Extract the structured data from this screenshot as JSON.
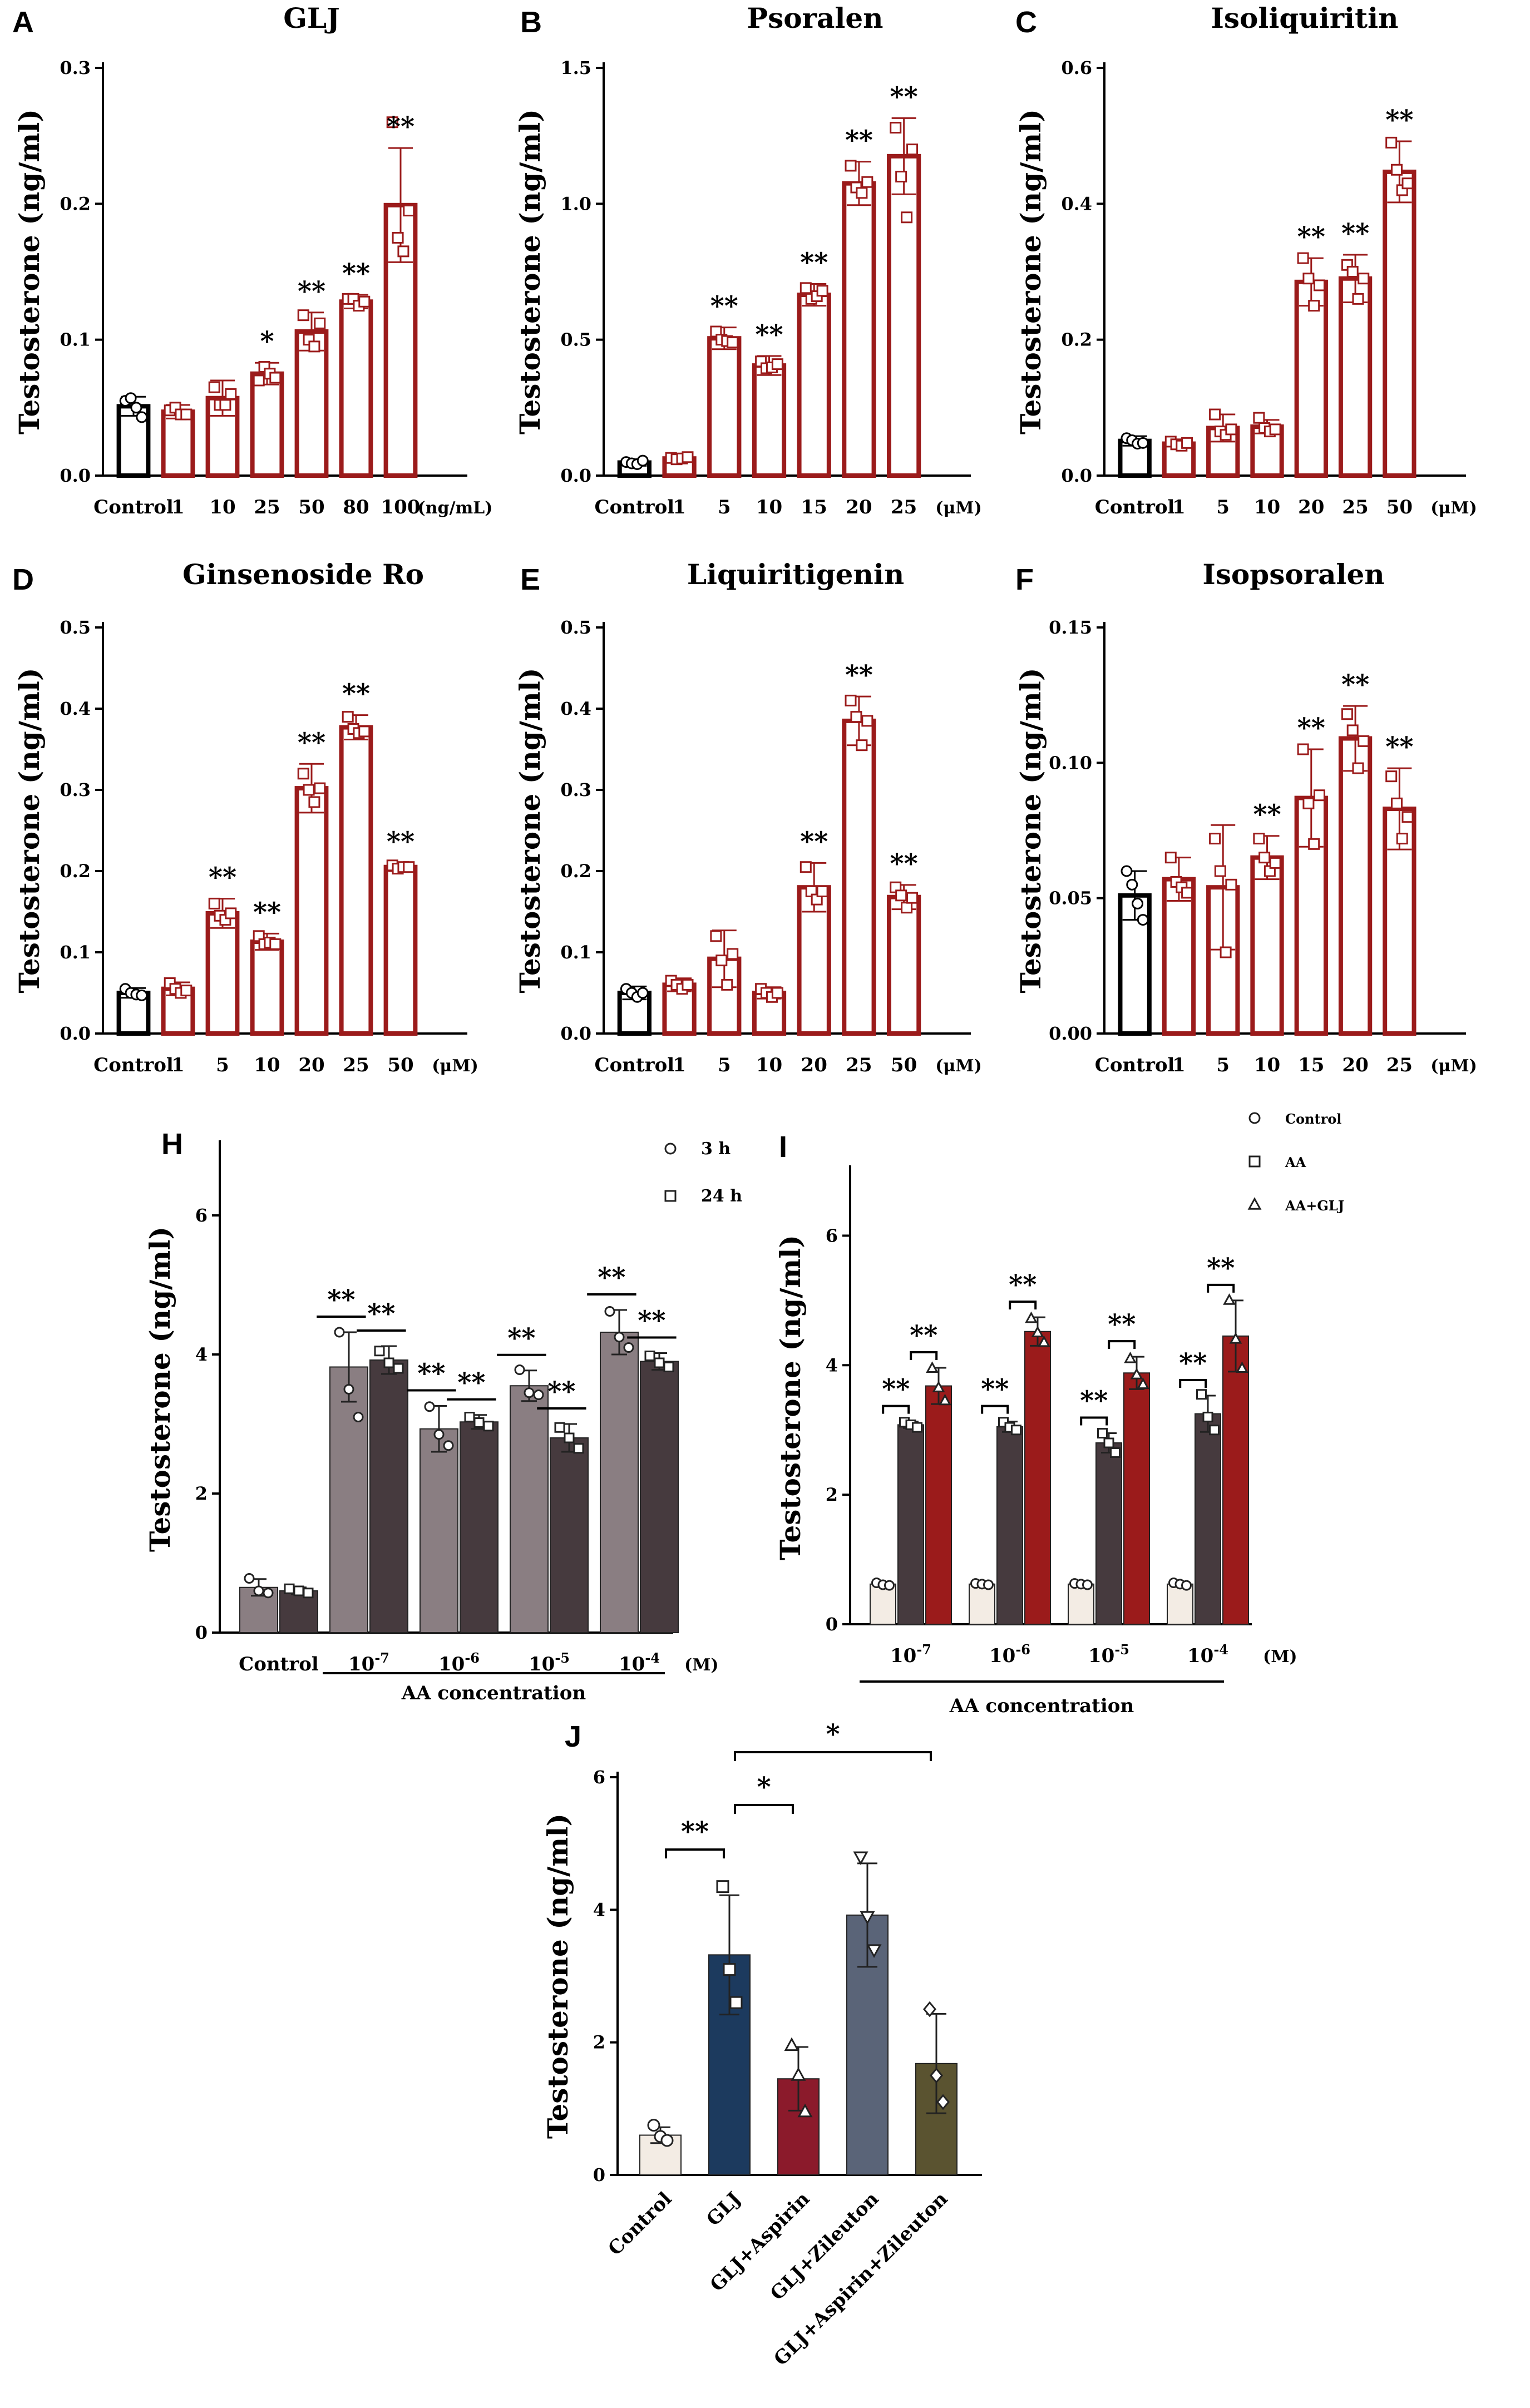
{
  "colors": {
    "red": "#9B1B1B",
    "black": "#000000",
    "light_grey": "#8A7E82",
    "dark_grey": "#463A3E",
    "cream": "#F3ECE4",
    "navy": "#1C3A5E",
    "slate": "#5A6478",
    "olive": "#5A5330"
  },
  "chart_data": [
    {
      "id": "A",
      "letter": "A",
      "title": "GLJ",
      "type": "bar",
      "style": "outline",
      "ylabel": "Testosterone (ng/ml)",
      "categories": [
        "Control",
        "1",
        "10",
        "25",
        "50",
        "80",
        "100"
      ],
      "unit": "(ng/mL)",
      "values": [
        0.051,
        0.047,
        0.057,
        0.075,
        0.106,
        0.128,
        0.199
      ],
      "errors": [
        0.007,
        0.005,
        0.013,
        0.008,
        0.014,
        0.005,
        0.042
      ],
      "points": [
        [
          0.055,
          0.057,
          0.05,
          0.043
        ],
        [
          0.048,
          0.05,
          0.045,
          0.045
        ],
        [
          0.065,
          0.052,
          0.052,
          0.06
        ],
        [
          0.07,
          0.08,
          0.075,
          0.072
        ],
        [
          0.118,
          0.1,
          0.095,
          0.112
        ],
        [
          0.13,
          0.13,
          0.125,
          0.128
        ],
        [
          0.26,
          0.175,
          0.165,
          0.195
        ]
      ],
      "stars": [
        "",
        "",
        "",
        "*",
        "**",
        "**",
        "**"
      ],
      "ylim": [
        0,
        0.3
      ],
      "yticks": [
        "0.0",
        "0.1",
        "0.2",
        "0.3"
      ],
      "ytick_values": [
        0,
        0.1,
        0.2,
        0.3
      ]
    },
    {
      "id": "B",
      "letter": "B",
      "title": "Psoralen",
      "type": "bar",
      "style": "outline",
      "ylabel": "Testosterone (ng/ml)",
      "categories": [
        "Control",
        "1",
        "5",
        "10",
        "15",
        "20",
        "25"
      ],
      "unit": "(μM)",
      "values": [
        0.048,
        0.063,
        0.505,
        0.405,
        0.665,
        1.075,
        1.175
      ],
      "errors": [
        0.012,
        0.01,
        0.04,
        0.035,
        0.04,
        0.08,
        0.14
      ],
      "points": [
        [
          0.05,
          0.045,
          0.042,
          0.055
        ],
        [
          0.065,
          0.06,
          0.063,
          0.068
        ],
        [
          0.53,
          0.5,
          0.495,
          0.49
        ],
        [
          0.42,
          0.395,
          0.398,
          0.41
        ],
        [
          0.69,
          0.65,
          0.66,
          0.68
        ],
        [
          1.14,
          1.06,
          1.04,
          1.08
        ],
        [
          1.28,
          1.1,
          0.95,
          1.2
        ]
      ],
      "stars": [
        "",
        "",
        "**",
        "**",
        "**",
        "**",
        "**"
      ],
      "ylim": [
        0,
        1.5
      ],
      "yticks": [
        "0.0",
        "0.5",
        "1.0",
        "1.5"
      ],
      "ytick_values": [
        0,
        0.5,
        1.0,
        1.5
      ]
    },
    {
      "id": "C",
      "letter": "C",
      "title": "Isoliquiritin",
      "type": "bar",
      "style": "outline",
      "ylabel": "Testosterone (ng/ml)",
      "categories": [
        "Control",
        "1",
        "5",
        "10",
        "20",
        "25",
        "50"
      ],
      "unit": "(μM)",
      "values": [
        0.051,
        0.047,
        0.07,
        0.072,
        0.285,
        0.29,
        0.447
      ],
      "errors": [
        0.007,
        0.004,
        0.02,
        0.01,
        0.035,
        0.035,
        0.045
      ],
      "points": [
        [
          0.055,
          0.052,
          0.047,
          0.048
        ],
        [
          0.05,
          0.046,
          0.044,
          0.048
        ],
        [
          0.09,
          0.065,
          0.06,
          0.068
        ],
        [
          0.085,
          0.07,
          0.065,
          0.068
        ],
        [
          0.32,
          0.29,
          0.25,
          0.28
        ],
        [
          0.31,
          0.3,
          0.26,
          0.29
        ],
        [
          0.49,
          0.45,
          0.42,
          0.43
        ]
      ],
      "stars": [
        "",
        "",
        "",
        "",
        "**",
        "**",
        "**"
      ],
      "ylim": [
        0,
        0.6
      ],
      "yticks": [
        "0.0",
        "0.2",
        "0.4",
        "0.6"
      ],
      "ytick_values": [
        0,
        0.2,
        0.4,
        0.6
      ]
    },
    {
      "id": "D",
      "letter": "D",
      "title": "Ginsenoside Ro",
      "type": "bar",
      "style": "outline",
      "ylabel": "Testosterone (ng/ml)",
      "categories": [
        "Control",
        "1",
        "5",
        "10",
        "20",
        "25",
        "50"
      ],
      "unit": "(μM)",
      "values": [
        0.05,
        0.055,
        0.148,
        0.113,
        0.302,
        0.377,
        0.205
      ],
      "errors": [
        0.006,
        0.008,
        0.018,
        0.01,
        0.03,
        0.015,
        0.005
      ],
      "points": [
        [
          0.055,
          0.05,
          0.048,
          0.047
        ],
        [
          0.062,
          0.055,
          0.05,
          0.053
        ],
        [
          0.16,
          0.145,
          0.14,
          0.148
        ],
        [
          0.12,
          0.11,
          0.112,
          0.11
        ],
        [
          0.32,
          0.3,
          0.285,
          0.302
        ],
        [
          0.39,
          0.375,
          0.37,
          0.372
        ],
        [
          0.207,
          0.203,
          0.205,
          0.205
        ]
      ],
      "stars": [
        "",
        "",
        "**",
        "**",
        "**",
        "**",
        "**"
      ],
      "ylim": [
        0,
        0.5
      ],
      "yticks": [
        "0.0",
        "0.1",
        "0.2",
        "0.3",
        "0.4",
        "0.5"
      ],
      "ytick_values": [
        0,
        0.1,
        0.2,
        0.3,
        0.4,
        0.5
      ]
    },
    {
      "id": "E",
      "letter": "E",
      "title": "Liquiritigenin",
      "type": "bar",
      "style": "outline",
      "ylabel": "Testosterone (ng/ml)",
      "categories": [
        "Control",
        "1",
        "5",
        "10",
        "20",
        "25",
        "50"
      ],
      "unit": "(μM)",
      "values": [
        0.05,
        0.06,
        0.092,
        0.05,
        0.18,
        0.385,
        0.168
      ],
      "errors": [
        0.008,
        0.008,
        0.035,
        0.007,
        0.03,
        0.03,
        0.015
      ],
      "points": [
        [
          0.055,
          0.05,
          0.045,
          0.05
        ],
        [
          0.065,
          0.06,
          0.055,
          0.06
        ],
        [
          0.12,
          0.09,
          0.06,
          0.098
        ],
        [
          0.055,
          0.05,
          0.045,
          0.05
        ],
        [
          0.205,
          0.175,
          0.165,
          0.175
        ],
        [
          0.41,
          0.39,
          0.355,
          0.385
        ],
        [
          0.18,
          0.17,
          0.155,
          0.167
        ]
      ],
      "stars": [
        "",
        "",
        "",
        "",
        "**",
        "**",
        "**"
      ],
      "ylim": [
        0,
        0.5
      ],
      "yticks": [
        "0.0",
        "0.1",
        "0.2",
        "0.3",
        "0.4",
        "0.5"
      ],
      "ytick_values": [
        0,
        0.1,
        0.2,
        0.3,
        0.4,
        0.5
      ]
    },
    {
      "id": "F",
      "letter": "F",
      "title": "Isopsoralen",
      "type": "bar",
      "style": "outline",
      "ylabel": "Testosterone (ng/ml)",
      "categories": [
        "Control",
        "1",
        "5",
        "10",
        "15",
        "20",
        "25"
      ],
      "unit": "(μM)",
      "values": [
        0.051,
        0.057,
        0.054,
        0.065,
        0.087,
        0.109,
        0.083
      ],
      "errors": [
        0.009,
        0.008,
        0.023,
        0.008,
        0.018,
        0.012,
        0.015
      ],
      "points": [
        [
          0.06,
          0.055,
          0.048,
          0.042
        ],
        [
          0.065,
          0.056,
          0.054,
          0.052
        ],
        [
          0.072,
          0.06,
          0.03,
          0.055
        ],
        [
          0.072,
          0.065,
          0.06,
          0.063
        ],
        [
          0.105,
          0.085,
          0.07,
          0.088
        ],
        [
          0.118,
          0.112,
          0.098,
          0.108
        ],
        [
          0.095,
          0.085,
          0.072,
          0.08
        ]
      ],
      "stars": [
        "",
        "",
        "",
        "**",
        "**",
        "**",
        "**"
      ],
      "ylim": [
        0,
        0.15
      ],
      "yticks": [
        "0.00",
        "0.05",
        "0.10",
        "0.15"
      ],
      "ytick_values": [
        0,
        0.05,
        0.1,
        0.15
      ]
    },
    {
      "id": "H",
      "letter": "H",
      "type": "bar",
      "style": "grouped",
      "ylabel": "Testosterone (ng/ml)",
      "xlabel": "AA concentration",
      "unit": "(M)",
      "groups": [
        {
          "base": "Control",
          "exp": ""
        },
        {
          "base": "10",
          "exp": "-7"
        },
        {
          "base": "10",
          "exp": "-6"
        },
        {
          "base": "10",
          "exp": "-5"
        },
        {
          "base": "10",
          "exp": "-4"
        }
      ],
      "series": [
        {
          "name": "3 h",
          "marker": "circle",
          "color": "#8A7E82",
          "values": [
            0.65,
            3.82,
            2.93,
            3.55,
            4.32
          ],
          "errors": [
            0.12,
            0.5,
            0.33,
            0.22,
            0.32
          ],
          "points": [
            [
              0.78,
              0.6,
              0.57
            ],
            [
              4.32,
              3.5,
              3.1
            ],
            [
              3.25,
              2.85,
              2.69
            ],
            [
              3.78,
              3.45,
              3.42
            ],
            [
              4.62,
              4.25,
              4.1
            ]
          ],
          "stars": [
            "",
            "**",
            "**",
            "**",
            "**"
          ]
        },
        {
          "name": "24 h",
          "marker": "square",
          "color": "#463A3E",
          "values": [
            0.6,
            3.92,
            3.03,
            2.8,
            3.9
          ],
          "errors": [
            0.05,
            0.2,
            0.1,
            0.2,
            0.12
          ],
          "points": [
            [
              0.63,
              0.6,
              0.57
            ],
            [
              4.05,
              3.88,
              3.8
            ],
            [
              3.1,
              3.02,
              2.97
            ],
            [
              2.95,
              2.8,
              2.65
            ],
            [
              3.98,
              3.88,
              3.82
            ]
          ],
          "stars": [
            "",
            "**",
            "**",
            "**",
            "**"
          ]
        }
      ],
      "ylim": [
        0,
        7
      ],
      "yticks": [
        "0",
        "2",
        "4",
        "6"
      ],
      "ytick_values": [
        0,
        2,
        4,
        6
      ]
    },
    {
      "id": "I",
      "letter": "I",
      "type": "bar",
      "style": "grouped",
      "ylabel": "Testosterone (ng/ml)",
      "xlabel": "AA concentration",
      "unit": "(M)",
      "groups": [
        {
          "base": "10",
          "exp": "-7"
        },
        {
          "base": "10",
          "exp": "-6"
        },
        {
          "base": "10",
          "exp": "-5"
        },
        {
          "base": "10",
          "exp": "-4"
        }
      ],
      "series": [
        {
          "name": "Control",
          "marker": "circle",
          "color": "#F3ECE4",
          "values": [
            0.62,
            0.62,
            0.62,
            0.62
          ],
          "errors": [
            0.03,
            0.02,
            0.02,
            0.02
          ],
          "points": [
            [
              0.64,
              0.61,
              0.6
            ],
            [
              0.63,
              0.62,
              0.61
            ],
            [
              0.63,
              0.62,
              0.61
            ],
            [
              0.64,
              0.62,
              0.6
            ]
          ],
          "stars": [
            "",
            "",
            "",
            ""
          ]
        },
        {
          "name": "AA",
          "marker": "square",
          "color": "#463A3E",
          "values": [
            3.08,
            3.05,
            2.8,
            3.25
          ],
          "errors": [
            0.05,
            0.08,
            0.15,
            0.28
          ],
          "points": [
            [
              3.12,
              3.08,
              3.04
            ],
            [
              3.12,
              3.04,
              3.0
            ],
            [
              2.95,
              2.8,
              2.65
            ],
            [
              3.55,
              3.2,
              3.0
            ]
          ],
          "stars": [
            "**",
            "**",
            "**",
            "**"
          ]
        },
        {
          "name": "AA+GLJ",
          "marker": "triangle",
          "color": "#9B1B1B",
          "values": [
            3.68,
            4.52,
            3.88,
            4.45
          ],
          "errors": [
            0.28,
            0.22,
            0.25,
            0.55
          ],
          "points": [
            [
              3.95,
              3.65,
              3.45
            ],
            [
              4.72,
              4.5,
              4.35
            ],
            [
              4.1,
              3.85,
              3.7
            ],
            [
              5.0,
              4.4,
              3.95
            ]
          ],
          "stars": [
            "**",
            "**",
            "**",
            "**"
          ]
        }
      ],
      "ylim": [
        0,
        7
      ],
      "yticks": [
        "0",
        "2",
        "4",
        "6"
      ],
      "ytick_values": [
        0,
        2,
        4,
        6
      ]
    },
    {
      "id": "J",
      "letter": "J",
      "type": "bar",
      "style": "colored",
      "ylabel": "Testosterone (ng/ml)",
      "categories": [
        "Control",
        "GLJ",
        "GLJ+Aspirin",
        "GLJ+Zileuton",
        "GLJ+Aspirin+Zileuton"
      ],
      "colors": [
        "#F3ECE4",
        "#1C3A5E",
        "#8B1A2B",
        "#5A6478",
        "#5A5330"
      ],
      "markers": [
        "circle",
        "square",
        "triangle",
        "triangle-down",
        "diamond"
      ],
      "values": [
        0.6,
        3.32,
        1.45,
        3.92,
        1.68
      ],
      "errors": [
        0.12,
        0.9,
        0.48,
        0.78,
        0.75
      ],
      "points": [
        [
          0.75,
          0.58,
          0.52
        ],
        [
          4.35,
          3.1,
          2.6
        ],
        [
          1.95,
          1.5,
          0.95
        ],
        [
          4.8,
          3.9,
          3.4
        ],
        [
          2.5,
          1.5,
          1.1
        ]
      ],
      "comparisons": [
        {
          "from": 0,
          "to": 1,
          "label": "**"
        },
        {
          "from": 1,
          "to": 2,
          "label": "*"
        },
        {
          "from": 1,
          "to": 4,
          "label": "*"
        }
      ],
      "ylim": [
        0,
        6
      ],
      "yticks": [
        "0",
        "2",
        "4",
        "6"
      ],
      "ytick_values": [
        0,
        2,
        4,
        6
      ]
    }
  ]
}
